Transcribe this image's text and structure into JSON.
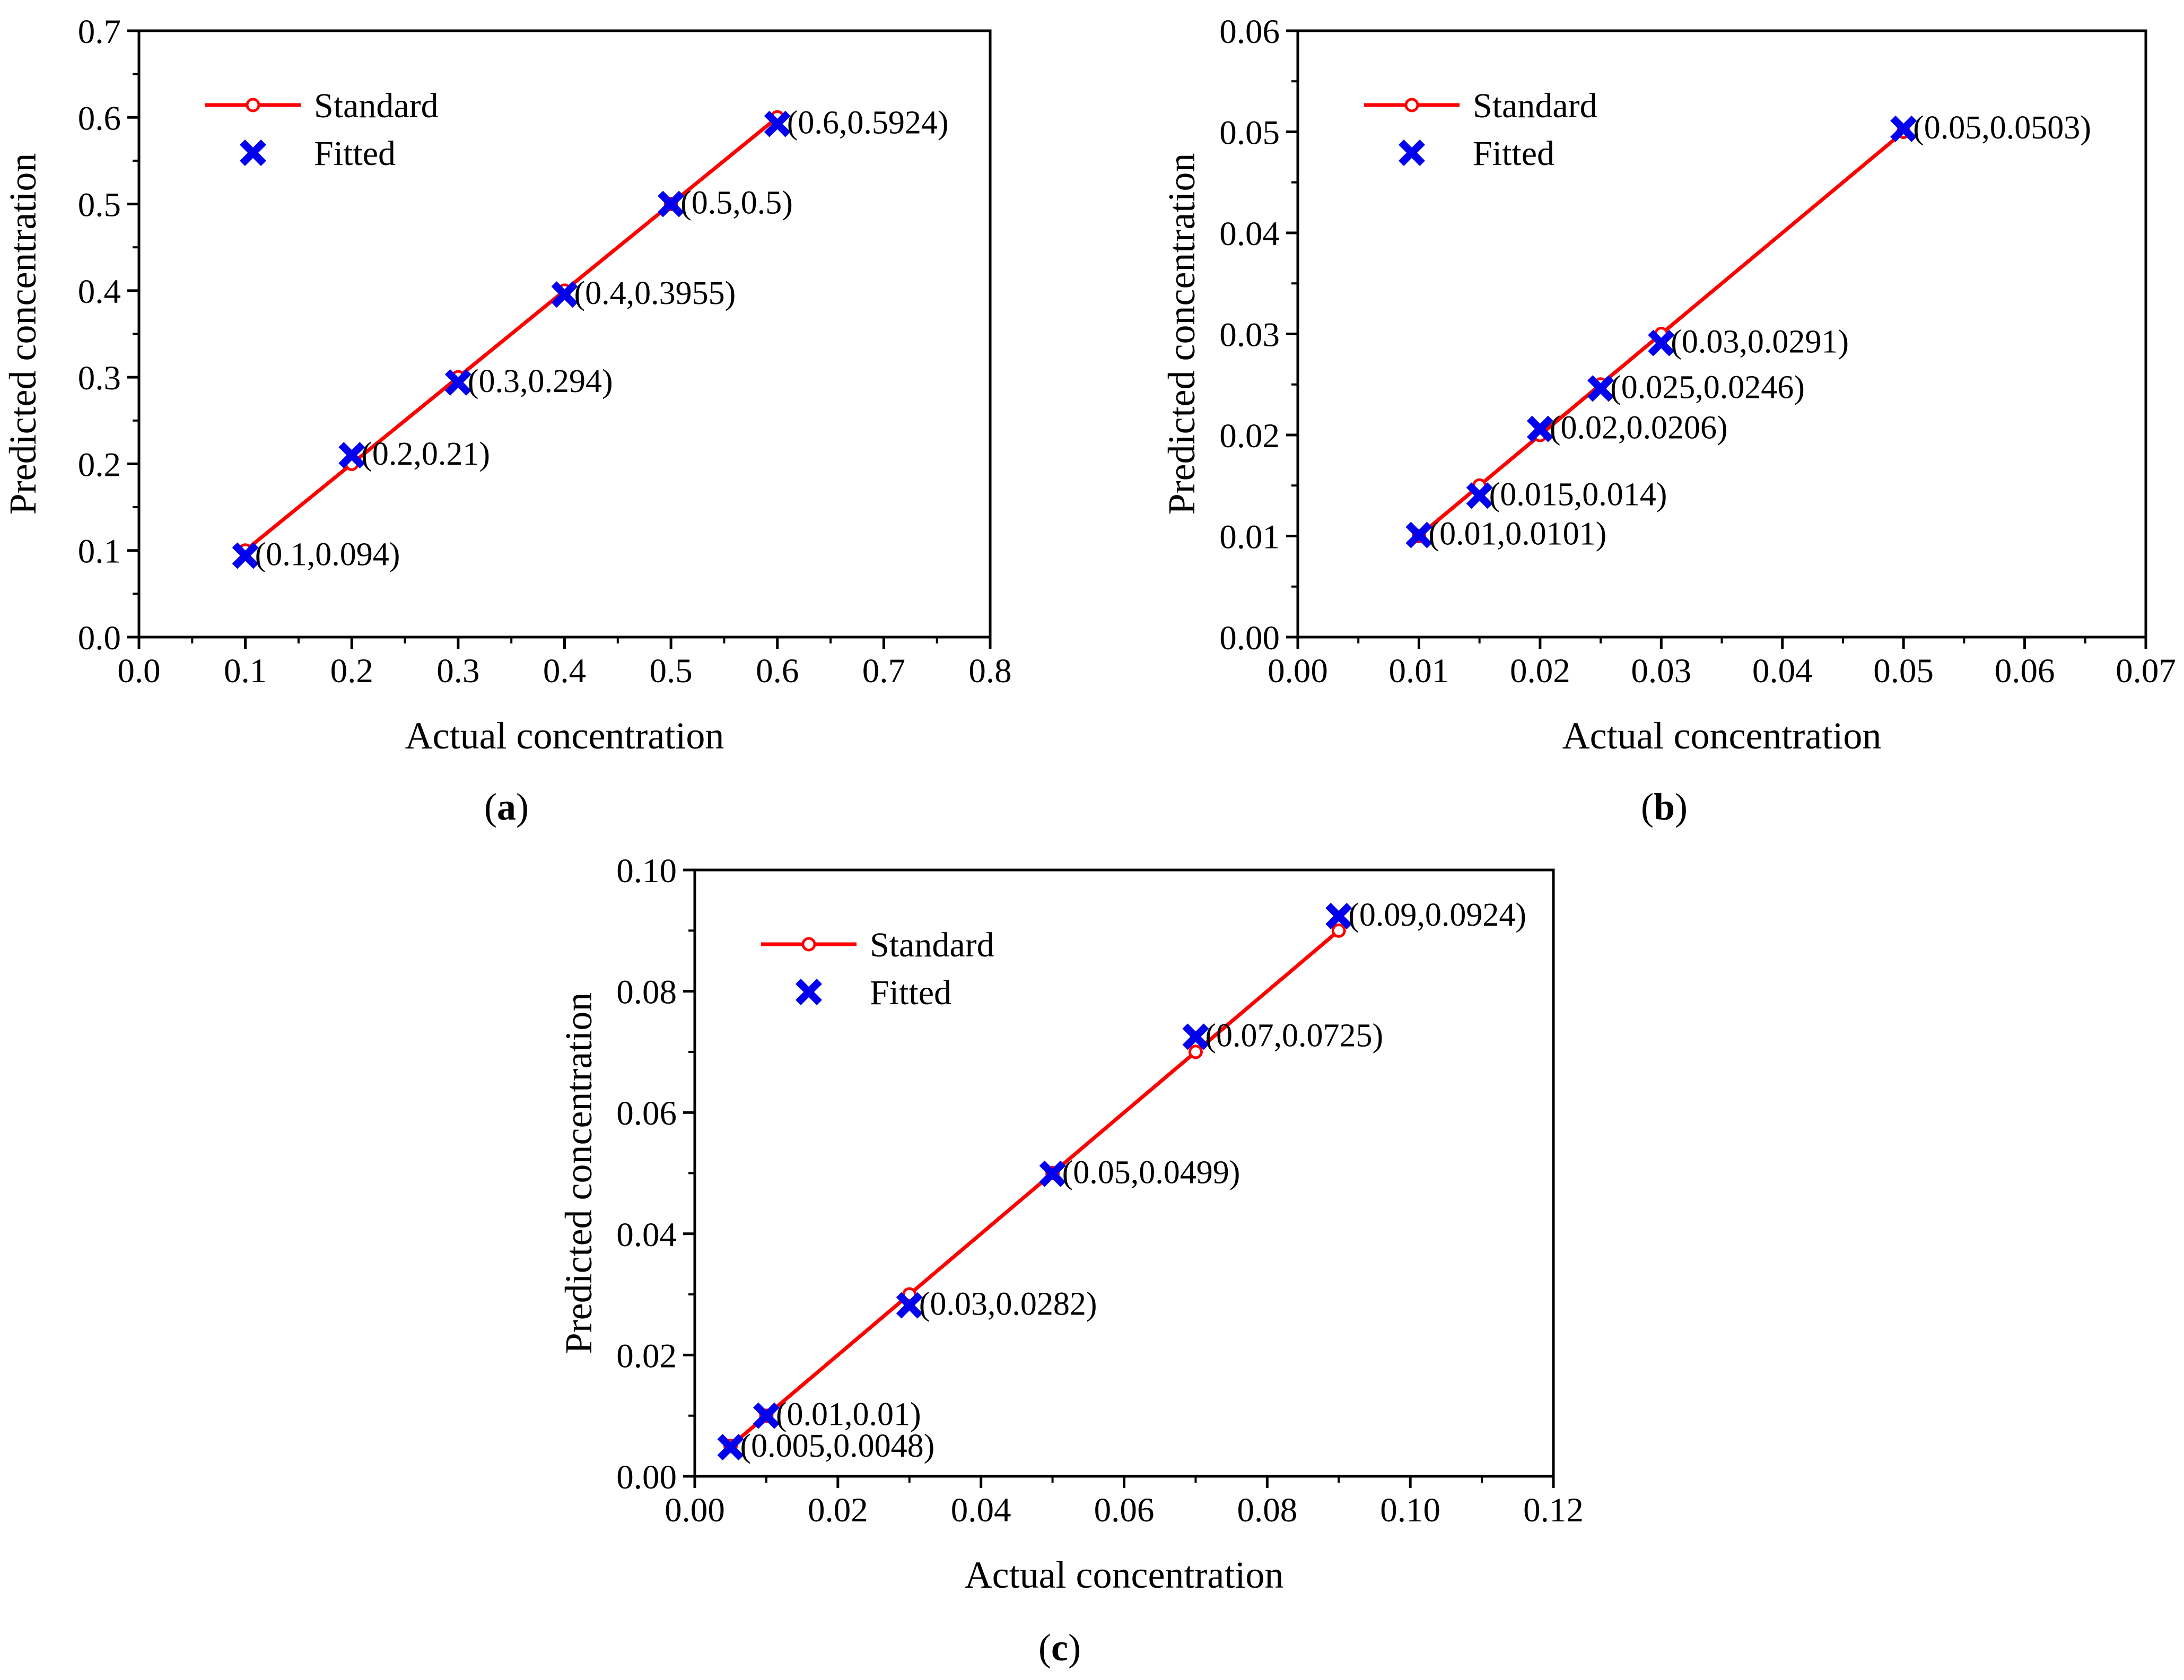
{
  "colors": {
    "standard": "#ff0000",
    "fitted": "#0000ee",
    "axis": "#000000"
  },
  "legend": {
    "standard": "Standard",
    "fitted": "Fitted"
  },
  "chart_data": [
    {
      "type": "scatter",
      "caption": {
        "open": "(",
        "letter": "a",
        "close": ")"
      },
      "xlabel": "Actual concentration",
      "ylabel": "Predicted concentration",
      "xlim": [
        0.0,
        0.8
      ],
      "ylim": [
        0.0,
        0.7
      ],
      "xticks": [
        0.0,
        0.1,
        0.2,
        0.3,
        0.4,
        0.5,
        0.6,
        0.7,
        0.8
      ],
      "xtick_labels": [
        "0.0",
        "0.1",
        "0.2",
        "0.3",
        "0.4",
        "0.5",
        "0.6",
        "0.7",
        "0.8"
      ],
      "yticks": [
        0.0,
        0.1,
        0.2,
        0.3,
        0.4,
        0.5,
        0.6,
        0.7
      ],
      "ytick_labels": [
        "0.0",
        "0.1",
        "0.2",
        "0.3",
        "0.4",
        "0.5",
        "0.6",
        "0.7"
      ],
      "legend_position": "top-left",
      "series": [
        {
          "name": "Standard",
          "marker": "line-circle",
          "x": [
            0.1,
            0.2,
            0.3,
            0.4,
            0.5,
            0.6
          ],
          "y": [
            0.1,
            0.2,
            0.3,
            0.4,
            0.5,
            0.6
          ]
        },
        {
          "name": "Fitted",
          "marker": "x",
          "x": [
            0.1,
            0.2,
            0.3,
            0.4,
            0.5,
            0.6
          ],
          "y": [
            0.094,
            0.21,
            0.294,
            0.3955,
            0.5,
            0.5924
          ]
        }
      ],
      "annotations": [
        "(0.1,0.094)",
        "(0.2,0.21)",
        "(0.3,0.294)",
        "(0.4,0.3955)",
        "(0.5,0.5)",
        "(0.6,0.5924)"
      ]
    },
    {
      "type": "scatter",
      "caption": {
        "open": "(",
        "letter": "b",
        "close": ")"
      },
      "xlabel": "Actual concentration",
      "ylabel": "Predicted concentration",
      "xlim": [
        0.0,
        0.07
      ],
      "ylim": [
        0.0,
        0.06
      ],
      "xticks": [
        0.0,
        0.01,
        0.02,
        0.03,
        0.04,
        0.05,
        0.06,
        0.07
      ],
      "xtick_labels": [
        "0.00",
        "0.01",
        "0.02",
        "0.03",
        "0.04",
        "0.05",
        "0.06",
        "0.07"
      ],
      "yticks": [
        0.0,
        0.01,
        0.02,
        0.03,
        0.04,
        0.05,
        0.06
      ],
      "ytick_labels": [
        "0.00",
        "0.01",
        "0.02",
        "0.03",
        "0.04",
        "0.05",
        "0.06"
      ],
      "legend_position": "top-left",
      "series": [
        {
          "name": "Standard",
          "marker": "line-circle",
          "x": [
            0.01,
            0.015,
            0.02,
            0.025,
            0.03,
            0.05
          ],
          "y": [
            0.01,
            0.015,
            0.02,
            0.025,
            0.03,
            0.05
          ]
        },
        {
          "name": "Fitted",
          "marker": "x",
          "x": [
            0.01,
            0.015,
            0.02,
            0.025,
            0.03,
            0.05
          ],
          "y": [
            0.0101,
            0.014,
            0.0206,
            0.0246,
            0.0291,
            0.0503
          ]
        }
      ],
      "annotations": [
        "(0.01,0.0101)",
        "(0.015,0.014)",
        "(0.02,0.0206)",
        "(0.025,0.0246)",
        "(0.03,0.0291)",
        "(0.05,0.0503)"
      ]
    },
    {
      "type": "scatter",
      "caption": {
        "open": "(",
        "letter": "c",
        "close": ")"
      },
      "xlabel": "Actual concentration",
      "ylabel": "Predicted concentration",
      "xlim": [
        0.0,
        0.12
      ],
      "ylim": [
        0.0,
        0.1
      ],
      "xticks": [
        0.0,
        0.02,
        0.04,
        0.06,
        0.08,
        0.1,
        0.12
      ],
      "xtick_labels": [
        "0.00",
        "0.02",
        "0.04",
        "0.06",
        "0.08",
        "0.10",
        "0.12"
      ],
      "yticks": [
        0.0,
        0.02,
        0.04,
        0.06,
        0.08,
        0.1
      ],
      "ytick_labels": [
        "0.00",
        "0.02",
        "0.04",
        "0.06",
        "0.08",
        "0.10"
      ],
      "legend_position": "top-left",
      "series": [
        {
          "name": "Standard",
          "marker": "line-circle",
          "x": [
            0.005,
            0.01,
            0.03,
            0.05,
            0.07,
            0.09
          ],
          "y": [
            0.005,
            0.01,
            0.03,
            0.05,
            0.07,
            0.09
          ]
        },
        {
          "name": "Fitted",
          "marker": "x",
          "x": [
            0.005,
            0.01,
            0.03,
            0.05,
            0.07,
            0.09
          ],
          "y": [
            0.0048,
            0.01,
            0.0282,
            0.0499,
            0.0725,
            0.0924
          ]
        }
      ],
      "annotations": [
        "(0.005,0.0048)",
        "(0.01,0.01)",
        "(0.03,0.0282)",
        "(0.05,0.0499)",
        "(0.07,0.0725)",
        "(0.09,0.0924)"
      ]
    }
  ]
}
